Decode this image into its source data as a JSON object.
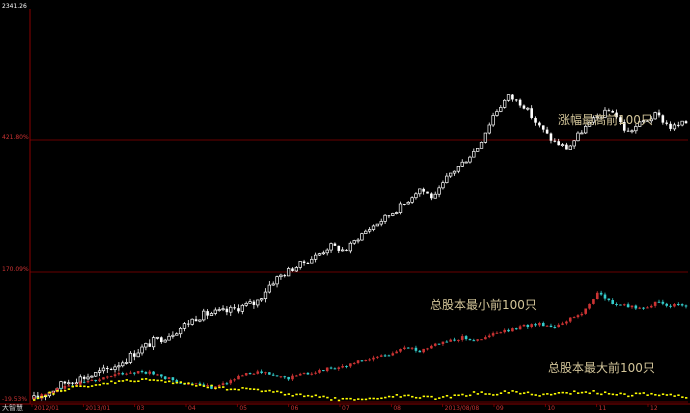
{
  "header": {
    "items": [
      "",
      "",
      "",
      ""
    ]
  },
  "yaxis": {
    "top_value": "2341.26",
    "ticks": [
      {
        "label": "421.80%",
        "pct": 421.8
      },
      {
        "label": "170.09%",
        "pct": 170.09
      },
      {
        "label": "-19.53%",
        "pct": -19.53
      }
    ]
  },
  "xaxis": {
    "labels": [
      "2012/01",
      "2013/01",
      "03",
      "04",
      "05",
      "06",
      "07",
      "08",
      "2013/08/08",
      "09",
      "10",
      "11",
      "12"
    ]
  },
  "footer": {
    "left_label": "大智慧"
  },
  "colors": {
    "background": "#000000",
    "grid_red": "#8a0000",
    "up_candle": "#ffffff",
    "down_candle": "#ffffff",
    "small_cap_up": "#cc3333",
    "small_cap_down": "#33cccc",
    "large_cap": "#ffff00",
    "annotation": "#d4c69a",
    "axis_text": "#cc3333"
  },
  "chart_data": {
    "type": "line",
    "yunit": "%",
    "ylim": [
      -19.53,
      520
    ],
    "grid": true,
    "annotations": [
      "涨幅最高前100只",
      "总股本最小前100只",
      "总股本最大前100只"
    ],
    "series": [
      {
        "name": "涨幅最高前100只",
        "style": "candlestick",
        "values": [
          -15,
          -5,
          8,
          15,
          20,
          28,
          40,
          55,
          68,
          78,
          90,
          105,
          110,
          112,
          120,
          125,
          155,
          170,
          185,
          200,
          220,
          210,
          240,
          260,
          280,
          300,
          330,
          310,
          355,
          380,
          410,
          470,
          505,
          490,
          450,
          420,
          405,
          440,
          465,
          480,
          435,
          455,
          470,
          445,
          455
        ]
      },
      {
        "name": "总股本最小前100只",
        "style": "candlestick",
        "values": [
          -15,
          -5,
          2,
          8,
          12,
          18,
          22,
          25,
          22,
          15,
          8,
          5,
          2,
          10,
          18,
          25,
          20,
          15,
          20,
          25,
          30,
          33,
          40,
          45,
          50,
          60,
          55,
          65,
          70,
          75,
          70,
          80,
          85,
          90,
          95,
          90,
          100,
          110,
          140,
          125,
          120,
          118,
          125,
          122,
          120
        ]
      },
      {
        "name": "总股本最大前100只",
        "style": "dotted-line",
        "values": [
          -15,
          -8,
          -2,
          2,
          5,
          8,
          10,
          12,
          12,
          10,
          8,
          5,
          3,
          0,
          0,
          -2,
          -5,
          -8,
          -10,
          -12,
          -15,
          -17,
          -16,
          -14,
          -12,
          -10,
          -12,
          -14,
          -12,
          -10,
          -6,
          -8,
          -5,
          -6,
          -10,
          -8,
          -6,
          -5,
          -6,
          -8,
          -10,
          -8,
          -9,
          -10,
          -12
        ]
      }
    ]
  }
}
